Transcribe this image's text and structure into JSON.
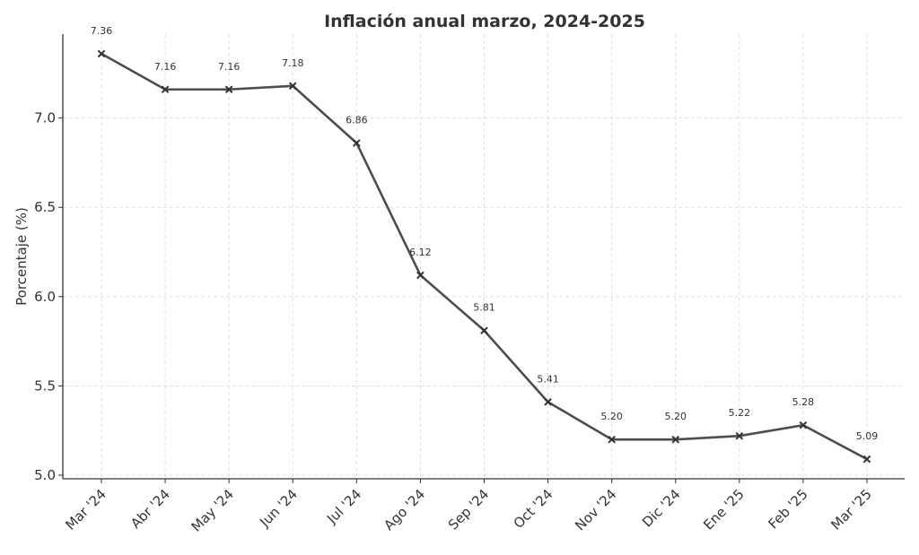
{
  "chart_data": {
    "type": "line",
    "title": "Inflación anual marzo, 2024-2025",
    "xlabel": "",
    "ylabel": "Porcentaje (%)",
    "categories": [
      "Mar '24",
      "Abr '24",
      "May '24",
      "Jun '24",
      "Jul '24",
      "Ago '24",
      "Sep '24",
      "Oct '24",
      "Nov '24",
      "Dic '24",
      "Ene '25",
      "Feb '25",
      "Mar '25"
    ],
    "series": [
      {
        "values": [
          7.36,
          7.16,
          7.16,
          7.18,
          6.86,
          6.12,
          5.81,
          5.41,
          5.2,
          5.2,
          5.22,
          5.28,
          5.09
        ],
        "data_labels": [
          "7.36",
          "7.16",
          "7.16",
          "7.18",
          "6.86",
          "6.12",
          "5.81",
          "5.41",
          "5.20",
          "5.20",
          "5.22",
          "5.28",
          "5.09"
        ],
        "color": "#4d4d4d",
        "marker": "x"
      }
    ],
    "ylim": [
      4.98,
      7.47
    ],
    "yticks": [
      5.0,
      5.5,
      6.0,
      6.5,
      7.0
    ],
    "ytick_labels": [
      "5.0",
      "5.5",
      "6.0",
      "6.5",
      "7.0"
    ],
    "grid": true,
    "legend": "none"
  }
}
